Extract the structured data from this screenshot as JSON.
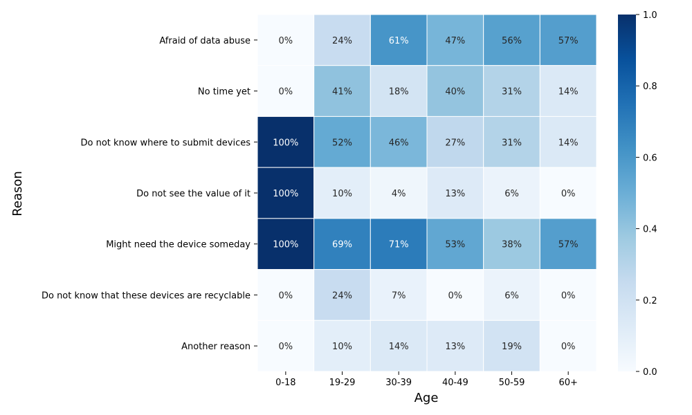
{
  "chart_data": {
    "type": "heatmap",
    "title": "",
    "xlabel": "Age",
    "ylabel": "Reason",
    "x_categories": [
      "0-18",
      "19-29",
      "30-39",
      "40-49",
      "50-59",
      "60+"
    ],
    "y_categories": [
      "Afraid of data abuse",
      "No time yet",
      "Do not know where to submit devices",
      "Do not see the value of it",
      "Might need the device someday",
      "Do not know that these devices are recyclable",
      "Another reason"
    ],
    "values": [
      [
        0.0,
        0.24,
        0.61,
        0.47,
        0.56,
        0.57
      ],
      [
        0.0,
        0.41,
        0.18,
        0.4,
        0.31,
        0.14
      ],
      [
        1.0,
        0.52,
        0.46,
        0.27,
        0.31,
        0.14
      ],
      [
        1.0,
        0.1,
        0.04,
        0.13,
        0.06,
        0.0
      ],
      [
        1.0,
        0.69,
        0.71,
        0.53,
        0.38,
        0.57
      ],
      [
        0.0,
        0.24,
        0.07,
        0.0,
        0.06,
        0.0
      ],
      [
        0.0,
        0.1,
        0.14,
        0.13,
        0.19,
        0.0
      ]
    ],
    "labels": [
      [
        "0%",
        "24%",
        "61%",
        "47%",
        "56%",
        "57%"
      ],
      [
        "0%",
        "41%",
        "18%",
        "40%",
        "31%",
        "14%"
      ],
      [
        "100%",
        "52%",
        "46%",
        "27%",
        "31%",
        "14%"
      ],
      [
        "100%",
        "10%",
        "4%",
        "13%",
        "6%",
        "0%"
      ],
      [
        "100%",
        "69%",
        "71%",
        "53%",
        "38%",
        "57%"
      ],
      [
        "0%",
        "24%",
        "7%",
        "0%",
        "6%",
        "0%"
      ],
      [
        "0%",
        "10%",
        "14%",
        "13%",
        "19%",
        "0%"
      ]
    ],
    "colorbar": {
      "range": [
        0.0,
        1.0
      ],
      "ticks": [
        "0.0",
        "0.2",
        "0.4",
        "0.6",
        "0.8",
        "1.0"
      ],
      "colormap": "Blues",
      "colors": [
        "#f7fbff",
        "#deebf7",
        "#c6dbef",
        "#9ecae1",
        "#6baed6",
        "#4292c6",
        "#2171b5",
        "#08519c",
        "#08306b"
      ]
    },
    "grid": false,
    "cell_border_color": "#ffffff"
  }
}
